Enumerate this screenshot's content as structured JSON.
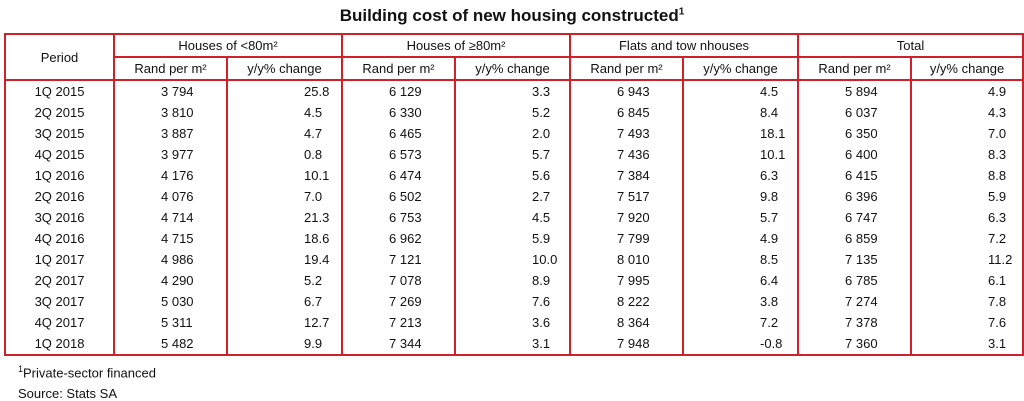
{
  "title": "Building cost of new housing constructed",
  "title_note": "1",
  "header": {
    "period": "Period",
    "groups": [
      "Houses of <80m²",
      "Houses of ≥80m²",
      "Flats and tow nhouses",
      "Total"
    ],
    "sub": [
      "Rand per m²",
      "y/y% change"
    ]
  },
  "chart_data": {
    "type": "table",
    "title": "Building cost of new housing constructed",
    "columns": [
      "Period",
      "Houses of <80m² Rand per m²",
      "Houses of <80m² y/y% change",
      "Houses of ≥80m² Rand per m²",
      "Houses of ≥80m² y/y% change",
      "Flats and tow nhouses Rand per m²",
      "Flats and tow nhouses y/y% change",
      "Total Rand per m²",
      "Total y/y% change"
    ],
    "rows": [
      [
        "1Q 2015",
        "3 794",
        "25.8",
        "6 129",
        "3.3",
        "6 943",
        "4.5",
        "5 894",
        "4.9"
      ],
      [
        "2Q 2015",
        "3 810",
        "4.5",
        "6 330",
        "5.2",
        "6 845",
        "8.4",
        "6 037",
        "4.3"
      ],
      [
        "3Q 2015",
        "3 887",
        "4.7",
        "6 465",
        "2.0",
        "7 493",
        "18.1",
        "6 350",
        "7.0"
      ],
      [
        "4Q 2015",
        "3 977",
        "0.8",
        "6 573",
        "5.7",
        "7 436",
        "10.1",
        "6 400",
        "8.3"
      ],
      [
        "1Q 2016",
        "4 176",
        "10.1",
        "6 474",
        "5.6",
        "7 384",
        "6.3",
        "6 415",
        "8.8"
      ],
      [
        "2Q 2016",
        "4 076",
        "7.0",
        "6 502",
        "2.7",
        "7 517",
        "9.8",
        "6 396",
        "5.9"
      ],
      [
        "3Q 2016",
        "4 714",
        "21.3",
        "6 753",
        "4.5",
        "7 920",
        "5.7",
        "6 747",
        "6.3"
      ],
      [
        "4Q 2016",
        "4 715",
        "18.6",
        "6 962",
        "5.9",
        "7 799",
        "4.9",
        "6 859",
        "7.2"
      ],
      [
        "1Q 2017",
        "4 986",
        "19.4",
        "7 121",
        "10.0",
        "8 010",
        "8.5",
        "7 135",
        "11.2"
      ],
      [
        "2Q 2017",
        "4 290",
        "5.2",
        "7 078",
        "8.9",
        "7 995",
        "6.4",
        "6 785",
        "6.1"
      ],
      [
        "3Q 2017",
        "5 030",
        "6.7",
        "7 269",
        "7.6",
        "8 222",
        "3.8",
        "7 274",
        "7.8"
      ],
      [
        "4Q 2017",
        "5 311",
        "12.7",
        "7 213",
        "3.6",
        "8 364",
        "7.2",
        "7 378",
        "7.6"
      ],
      [
        "1Q 2018",
        "5 482",
        "9.9",
        "7 344",
        "3.1",
        "7 948",
        "-0.8",
        "7 360",
        "3.1"
      ]
    ]
  },
  "footnote": {
    "mark": "1",
    "text": "Private-sector financed"
  },
  "source": "Source: Stats SA",
  "colors": {
    "rule": "#d0202a",
    "text": "#111111"
  }
}
